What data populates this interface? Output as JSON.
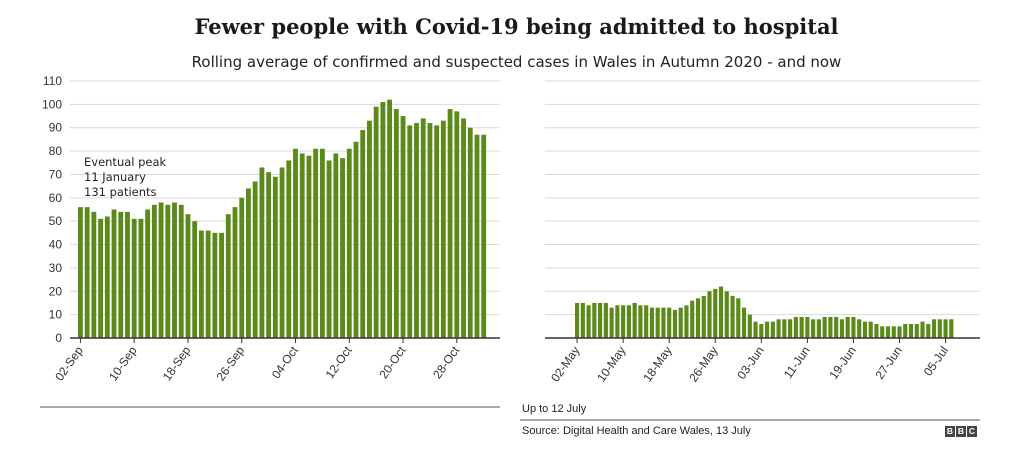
{
  "title": "Fewer people with Covid-19 being admitted to hospital",
  "subtitle": "Rolling average of confirmed and suspected cases in Wales in Autumn 2020 - and now",
  "note": "Up to 12 July",
  "source": "Source: Digital Health and Care Wales, 13 July",
  "logo": "BBC",
  "colors": {
    "bar": "#5b8a1a",
    "grid": "#d9d9d9",
    "axis": "#333333"
  },
  "chart_data": [
    {
      "type": "bar",
      "panel": "left",
      "ylim": [
        0,
        110
      ],
      "yticks": [
        0,
        10,
        20,
        30,
        40,
        50,
        60,
        70,
        80,
        90,
        100,
        110
      ],
      "grid": true,
      "xtick_labels": [
        "02-Sep",
        "10-Sep",
        "18-Sep",
        "26-Sep",
        "04-Oct",
        "12-Oct",
        "20-Oct",
        "28-Oct"
      ],
      "xtick_start": "2020-09-02",
      "annotation": [
        "Eventual peak",
        "11 January",
        "131 patients"
      ],
      "values": [
        56,
        56,
        54,
        51,
        52,
        55,
        54,
        54,
        51,
        51,
        55,
        57,
        58,
        57,
        58,
        57,
        53,
        50,
        46,
        46,
        45,
        45,
        53,
        56,
        60,
        64,
        67,
        73,
        71,
        69,
        73,
        76,
        81,
        79,
        78,
        81,
        81,
        76,
        79,
        77,
        81,
        84,
        89,
        93,
        99,
        101,
        102,
        98,
        95,
        91,
        92,
        94,
        92,
        91,
        93,
        98,
        97,
        94,
        90,
        87,
        87
      ]
    },
    {
      "type": "bar",
      "panel": "right",
      "ylim": [
        0,
        110
      ],
      "grid": true,
      "xtick_labels": [
        "02-May",
        "10-May",
        "18-May",
        "26-May",
        "03-Jun",
        "11-Jun",
        "19-Jun",
        "27-Jun",
        "05-Jul"
      ],
      "xtick_start": "2021-05-02",
      "values": [
        15,
        15,
        14,
        15,
        15,
        15,
        13,
        14,
        14,
        14,
        15,
        14,
        14,
        13,
        13,
        13,
        13,
        12,
        13,
        14,
        16,
        17,
        18,
        20,
        21,
        22,
        20,
        18,
        17,
        13,
        10,
        7,
        6,
        7,
        7,
        8,
        8,
        8,
        9,
        9,
        9,
        8,
        8,
        9,
        9,
        9,
        8,
        9,
        9,
        8,
        7,
        7,
        6,
        5,
        5,
        5,
        5,
        6,
        6,
        6,
        7,
        6,
        8,
        8,
        8,
        8
      ]
    }
  ]
}
